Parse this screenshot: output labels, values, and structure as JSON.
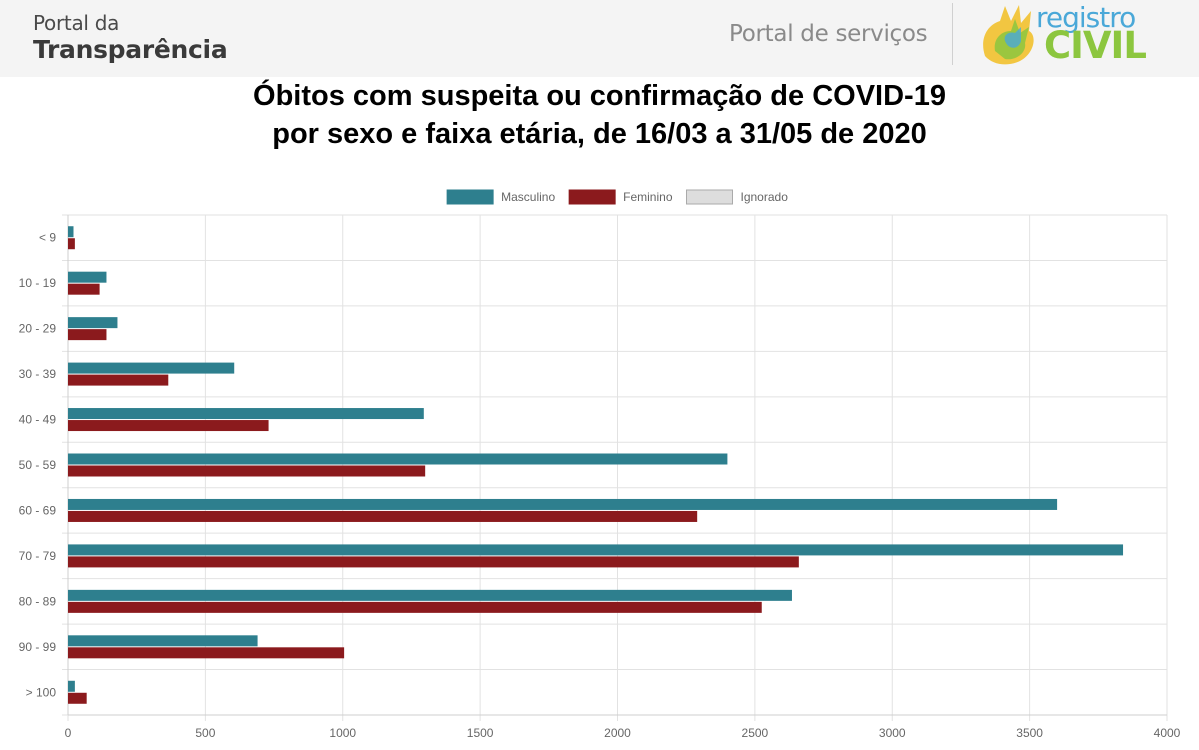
{
  "header": {
    "portal_line1": "Portal da",
    "portal_line2": "Transparência",
    "services_link": "Portal de serviços",
    "logo_line1": "registro",
    "logo_line2": "CIVIL"
  },
  "chart_data": {
    "type": "bar",
    "orientation": "horizontal",
    "title_lines": [
      "Óbitos com suspeita ou confirmação de COVID-19",
      "por sexo e faixa etária, de 16/03 a 31/05 de 2020"
    ],
    "categories": [
      "< 9",
      "10 - 19",
      "20 - 29",
      "30 - 39",
      "40 - 49",
      "50 - 59",
      "60 - 69",
      "70 - 79",
      "80 - 89",
      "90 - 99",
      "> 100"
    ],
    "series": [
      {
        "name": "Masculino",
        "color": "#2e7f8e",
        "values": [
          20,
          140,
          180,
          605,
          1295,
          2400,
          3600,
          3840,
          2635,
          690,
          25
        ]
      },
      {
        "name": "Feminino",
        "color": "#8b1a1d",
        "values": [
          25,
          115,
          140,
          365,
          730,
          1300,
          2290,
          2660,
          2525,
          1005,
          68
        ]
      },
      {
        "name": "Ignorado",
        "color": "#dddddd",
        "values": [
          0,
          0,
          0,
          0,
          0,
          0,
          0,
          0,
          0,
          0,
          0
        ]
      }
    ],
    "xlim": [
      0,
      4000
    ],
    "xticks": [
      0,
      500,
      1000,
      1500,
      2000,
      2500,
      3000,
      3500,
      4000
    ],
    "grid": true,
    "legend_position": "top"
  }
}
